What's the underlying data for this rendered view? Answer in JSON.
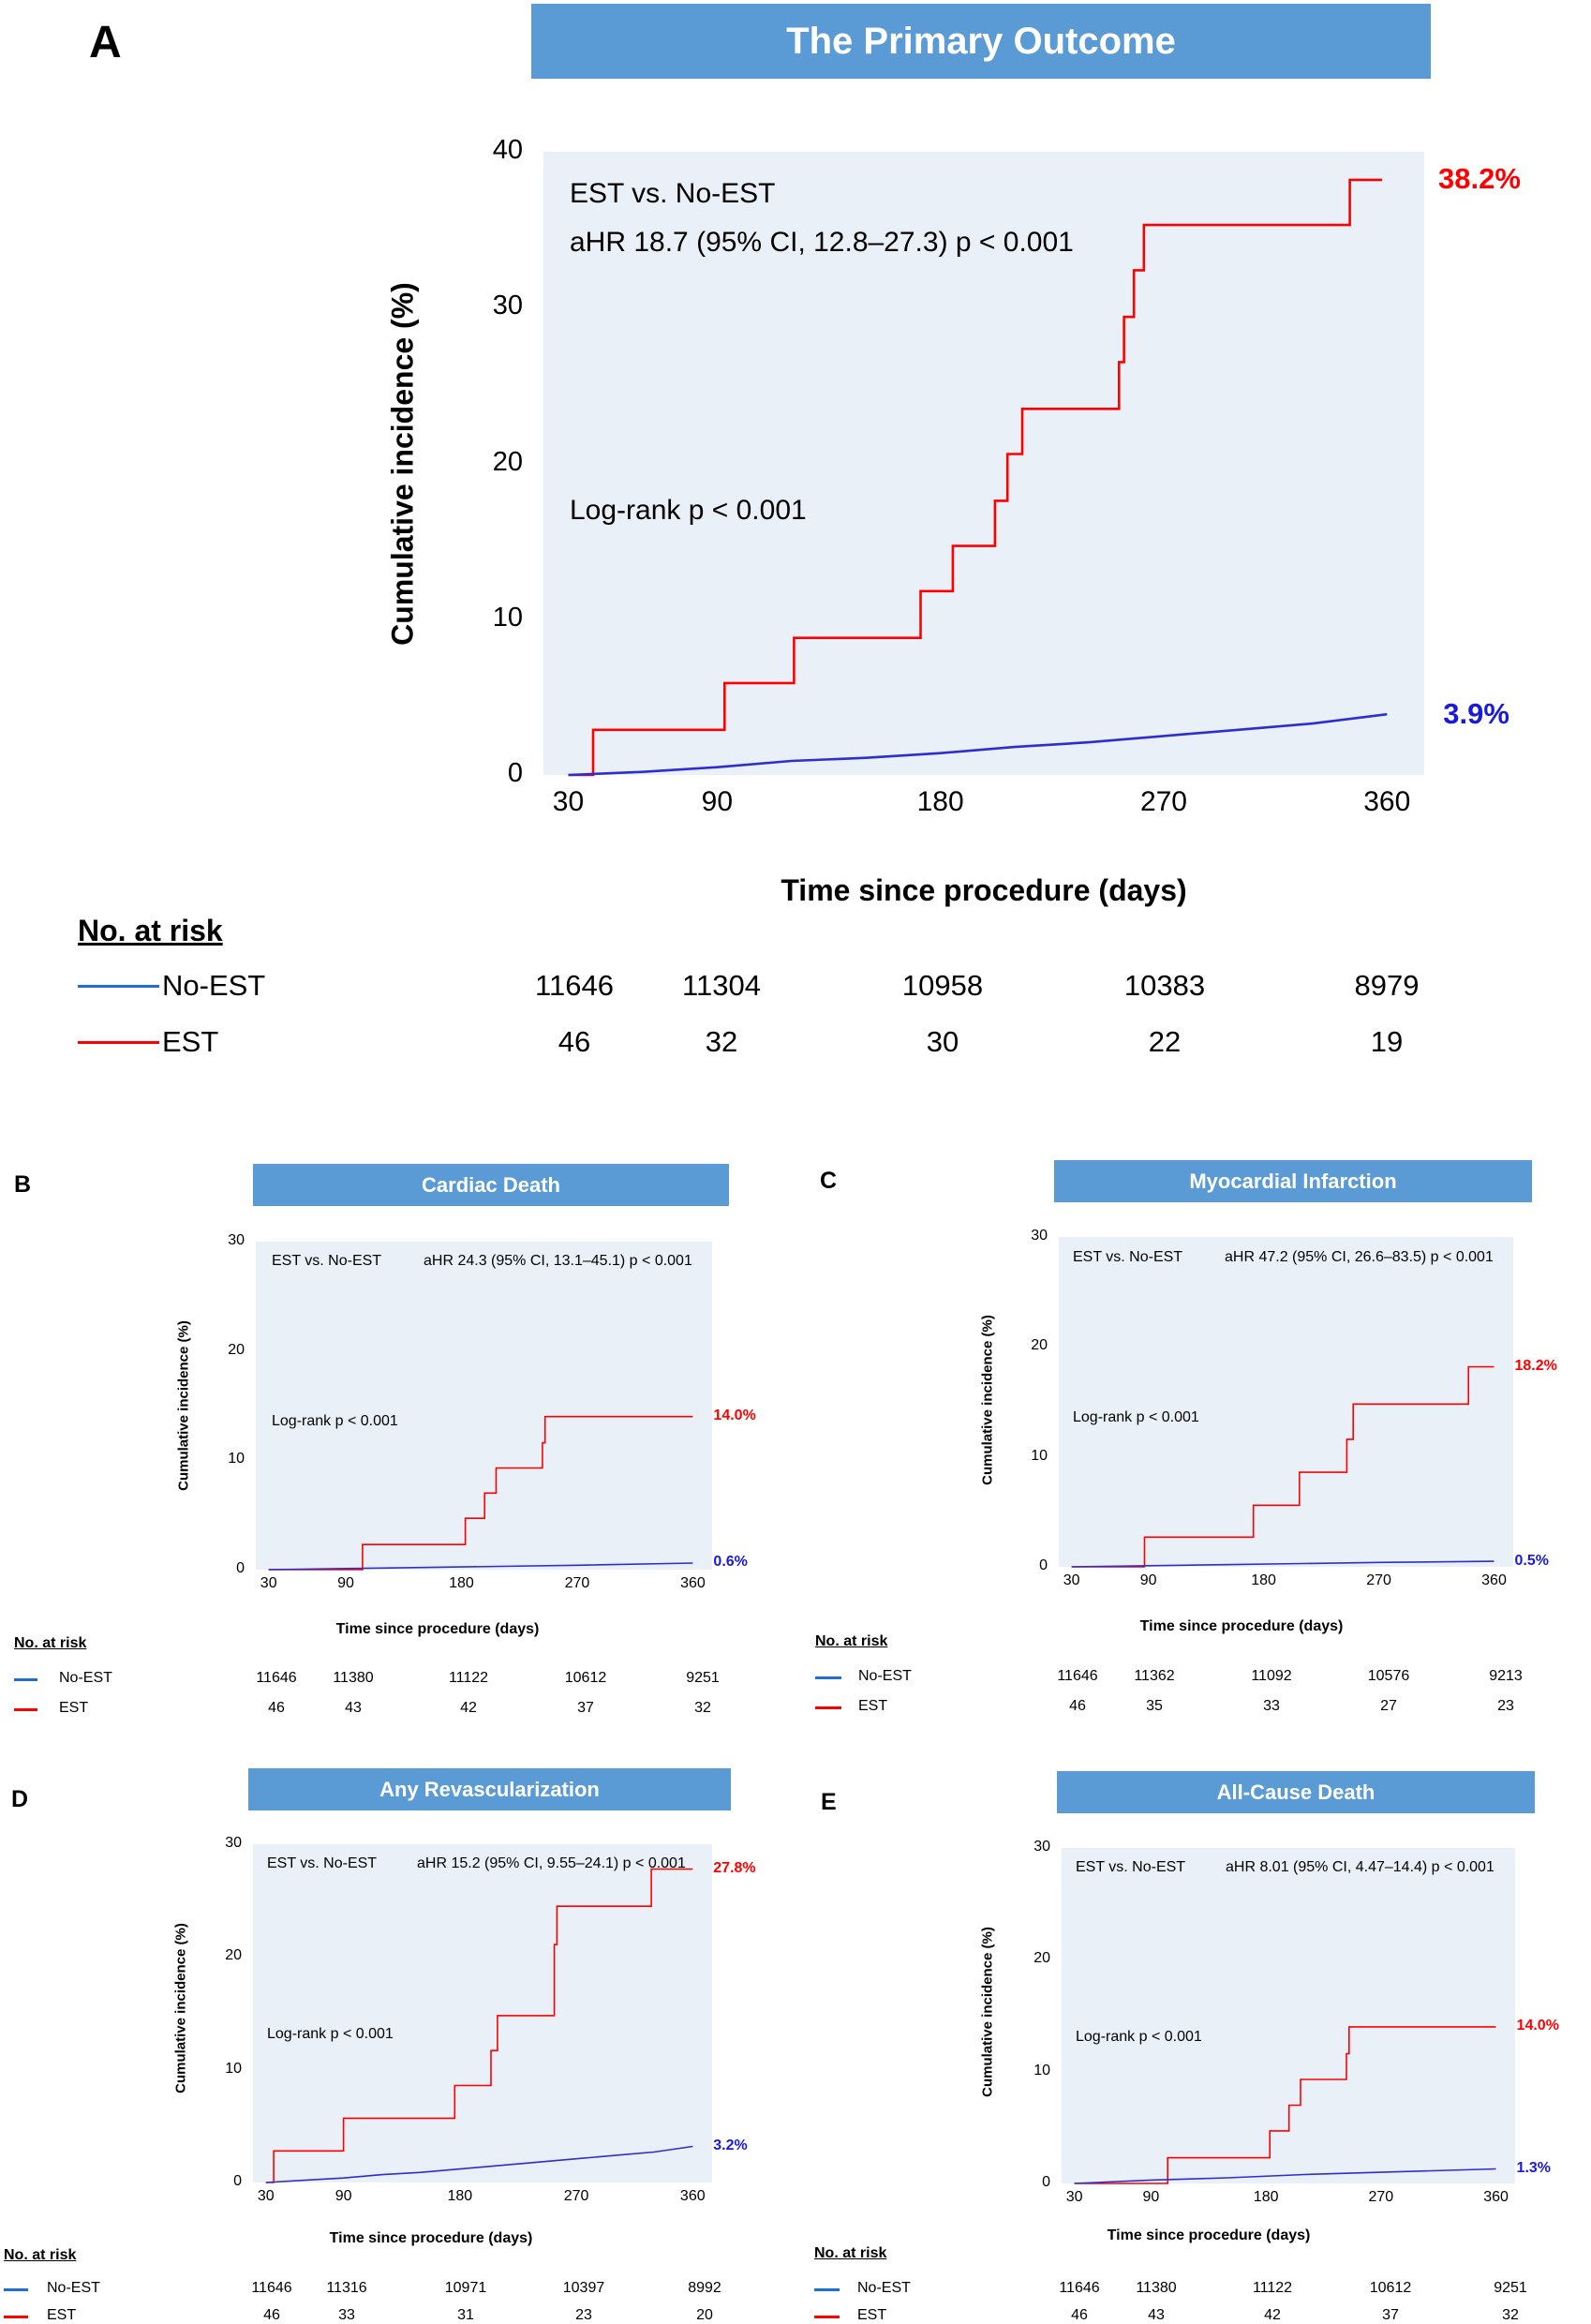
{
  "chart_data": [
    {
      "panel": "A",
      "type": "line",
      "title": "The Primary Outcome",
      "xlabel": "Time since procedure (days)",
      "ylabel": "Cumulative incidence (%)",
      "x_ticks": [
        "30",
        "90",
        "180",
        "270",
        "360"
      ],
      "x_tick_values": [
        30,
        90,
        180,
        270,
        360
      ],
      "y_ticks": [
        "0",
        "10",
        "20",
        "30",
        "40"
      ],
      "y_tick_values": [
        0,
        10,
        20,
        30,
        40
      ],
      "xlim": [
        20,
        375
      ],
      "ylim": [
        0,
        40
      ],
      "annotations": [
        "EST vs. No-EST",
        "aHR  18.7 (95% CI, 12.8–27.3) p < 0.001",
        "Log-rank p < 0.001"
      ],
      "series": [
        {
          "name": "EST",
          "color": "#ff0000",
          "step": true,
          "end_label": "38.2%",
          "x": [
            30,
            40,
            40,
            93,
            93,
            121,
            121,
            172,
            172,
            185,
            185,
            202,
            202,
            207,
            207,
            213,
            213,
            252,
            252,
            254,
            254,
            258,
            258,
            262,
            262,
            345,
            345,
            358
          ],
          "y": [
            0,
            0,
            2.9,
            2.9,
            5.9,
            5.9,
            8.8,
            8.8,
            11.8,
            11.8,
            14.7,
            14.7,
            17.6,
            17.6,
            20.6,
            20.6,
            23.5,
            23.5,
            26.5,
            26.5,
            29.4,
            29.4,
            32.4,
            32.4,
            35.3,
            35.3,
            38.2,
            38.2
          ]
        },
        {
          "name": "No-EST",
          "color": "#2e2ecf",
          "step": false,
          "end_label": "3.9%",
          "x": [
            30,
            60,
            90,
            120,
            150,
            180,
            210,
            240,
            270,
            300,
            330,
            360
          ],
          "y": [
            0,
            0.2,
            0.5,
            0.9,
            1.1,
            1.4,
            1.8,
            2.1,
            2.5,
            2.9,
            3.3,
            3.9
          ]
        }
      ],
      "risk_table": {
        "title": "No. at risk",
        "rows": [
          {
            "name": "No-EST",
            "color": "#1f6fd1",
            "values": [
              "11646",
              "11304",
              "10958",
              "10383",
              "8979"
            ]
          },
          {
            "name": "EST",
            "color": "#ff0000",
            "values": [
              "46",
              "32",
              "30",
              "22",
              "19"
            ]
          }
        ]
      }
    },
    {
      "panel": "B",
      "type": "line",
      "title": "Cardiac Death",
      "xlabel": "Time since procedure (days)",
      "ylabel": "Cumulative incidence (%)",
      "x_ticks": [
        "30",
        "90",
        "180",
        "270",
        "360"
      ],
      "x_tick_values": [
        30,
        90,
        180,
        270,
        360
      ],
      "y_ticks": [
        "0",
        "10",
        "20",
        "30"
      ],
      "y_tick_values": [
        0,
        10,
        20,
        30
      ],
      "xlim": [
        20,
        375
      ],
      "ylim": [
        0,
        30
      ],
      "annotations": [
        "EST vs. No-EST",
        "aHR 24.3 (95% CI, 13.1–45.1) p < 0.001",
        "Log-rank p < 0.001"
      ],
      "series": [
        {
          "name": "EST",
          "color": "#ff0000",
          "step": true,
          "end_label": "14.0%",
          "x": [
            30,
            103,
            103,
            183,
            183,
            198,
            198,
            207,
            207,
            243,
            243,
            245,
            245,
            255,
            255,
            360
          ],
          "y": [
            0,
            0,
            2.3,
            2.3,
            4.7,
            4.7,
            7.0,
            7.0,
            9.3,
            9.3,
            11.6,
            11.6,
            14.0,
            14.0,
            14.0,
            14.0
          ]
        },
        {
          "name": "No-EST",
          "color": "#2e2ecf",
          "step": false,
          "end_label": "0.6%",
          "x": [
            30,
            90,
            150,
            210,
            270,
            360
          ],
          "y": [
            0,
            0.1,
            0.2,
            0.3,
            0.4,
            0.6
          ]
        }
      ],
      "risk_table": {
        "title": "No. at risk",
        "rows": [
          {
            "name": "No-EST",
            "color": "#1f6fd1",
            "values": [
              "11646",
              "11380",
              "11122",
              "10612",
              "9251"
            ]
          },
          {
            "name": "EST",
            "color": "#ff0000",
            "values": [
              "46",
              "43",
              "42",
              "37",
              "32"
            ]
          }
        ]
      }
    },
    {
      "panel": "C",
      "type": "line",
      "title": "Myocardial Infarction",
      "xlabel": "Time since procedure (days)",
      "ylabel": "Cumulative incidence (%)",
      "x_ticks": [
        "30",
        "90",
        "180",
        "270",
        "360"
      ],
      "x_tick_values": [
        30,
        90,
        180,
        270,
        360
      ],
      "y_ticks": [
        "0",
        "10",
        "20",
        "30"
      ],
      "y_tick_values": [
        0,
        10,
        20,
        30
      ],
      "xlim": [
        20,
        375
      ],
      "ylim": [
        0,
        30
      ],
      "annotations": [
        "EST vs. No-EST",
        "aHR 47.2 (95% CI, 26.6–83.5) p < 0.001",
        "Log-rank p < 0.001"
      ],
      "series": [
        {
          "name": "EST",
          "color": "#ff0000",
          "step": true,
          "end_label": "18.2%",
          "x": [
            30,
            87,
            87,
            172,
            172,
            208,
            208,
            245,
            245,
            250,
            250,
            340,
            340,
            360
          ],
          "y": [
            0,
            0,
            2.7,
            2.7,
            5.6,
            5.6,
            8.6,
            8.6,
            11.6,
            11.6,
            14.8,
            14.8,
            18.2,
            18.2
          ]
        },
        {
          "name": "No-EST",
          "color": "#2e2ecf",
          "step": false,
          "end_label": "0.5%",
          "x": [
            30,
            90,
            150,
            210,
            270,
            360
          ],
          "y": [
            0,
            0.1,
            0.2,
            0.3,
            0.4,
            0.5
          ]
        }
      ],
      "risk_table": {
        "title": "No. at risk",
        "rows": [
          {
            "name": "No-EST",
            "color": "#1f6fd1",
            "values": [
              "11646",
              "11362",
              "11092",
              "10576",
              "9213"
            ]
          },
          {
            "name": "EST",
            "color": "#ff0000",
            "values": [
              "46",
              "35",
              "33",
              "27",
              "23"
            ]
          }
        ]
      }
    },
    {
      "panel": "D",
      "type": "line",
      "title": "Any Revascularization",
      "xlabel": "Time since procedure (days)",
      "ylabel": "Cumulative incidence (%)",
      "x_ticks": [
        "30",
        "90",
        "180",
        "270",
        "360"
      ],
      "x_tick_values": [
        30,
        90,
        180,
        270,
        360
      ],
      "y_ticks": [
        "0",
        "10",
        "20",
        "30"
      ],
      "y_tick_values": [
        0,
        10,
        20,
        30
      ],
      "xlim": [
        20,
        375
      ],
      "ylim": [
        0,
        30
      ],
      "annotations": [
        "EST vs. No-EST",
        "aHR  15.2 (95% CI, 9.55–24.1) p < 0.001",
        "Log-rank p < 0.001"
      ],
      "series": [
        {
          "name": "EST",
          "color": "#ff0000",
          "step": true,
          "end_label": "27.8%",
          "x": [
            30,
            36,
            36,
            90,
            90,
            176,
            176,
            204,
            204,
            209,
            209,
            253,
            253,
            255,
            255,
            260,
            260,
            328,
            328,
            360
          ],
          "y": [
            0,
            0,
            2.8,
            2.8,
            5.7,
            5.7,
            8.6,
            8.6,
            11.7,
            11.7,
            14.8,
            14.8,
            21.1,
            21.1,
            24.5,
            24.5,
            24.5,
            24.5,
            27.8,
            27.8
          ]
        },
        {
          "name": "No-EST",
          "color": "#2e2ecf",
          "step": false,
          "end_label": "3.2%",
          "x": [
            30,
            60,
            90,
            120,
            150,
            180,
            210,
            240,
            270,
            300,
            330,
            360
          ],
          "y": [
            0,
            0.2,
            0.4,
            0.7,
            0.9,
            1.2,
            1.5,
            1.8,
            2.1,
            2.4,
            2.7,
            3.2
          ]
        }
      ],
      "risk_table": {
        "title": "No. at risk",
        "rows": [
          {
            "name": "No-EST",
            "color": "#1f6fd1",
            "values": [
              "11646",
              "11316",
              "10971",
              "10397",
              "8992"
            ]
          },
          {
            "name": "EST",
            "color": "#ff0000",
            "values": [
              "46",
              "33",
              "31",
              "23",
              "20"
            ]
          }
        ]
      }
    },
    {
      "panel": "E",
      "type": "line",
      "title": "All-Cause Death",
      "xlabel": "Time since procedure (days)",
      "ylabel": "Cumulative incidence (%)",
      "x_ticks": [
        "30",
        "90",
        "180",
        "270",
        "360"
      ],
      "x_tick_values": [
        30,
        90,
        180,
        270,
        360
      ],
      "y_ticks": [
        "0",
        "10",
        "20",
        "30"
      ],
      "y_tick_values": [
        0,
        10,
        20,
        30
      ],
      "xlim": [
        20,
        375
      ],
      "ylim": [
        0,
        30
      ],
      "annotations": [
        "EST vs. No-EST",
        "aHR 8.01 (95% CI, 4.47–14.4) p < 0.001",
        "Log-rank p < 0.001"
      ],
      "series": [
        {
          "name": "EST",
          "color": "#ff0000",
          "step": true,
          "end_label": "14.0%",
          "x": [
            30,
            103,
            103,
            183,
            183,
            198,
            198,
            207,
            207,
            243,
            243,
            245,
            245,
            360
          ],
          "y": [
            0,
            0,
            2.3,
            2.3,
            4.7,
            4.7,
            7.0,
            7.0,
            9.3,
            9.3,
            11.6,
            11.6,
            14.0,
            14.0
          ]
        },
        {
          "name": "No-EST",
          "color": "#2e2ecf",
          "step": false,
          "end_label": "1.3%",
          "x": [
            30,
            90,
            150,
            210,
            270,
            360
          ],
          "y": [
            0,
            0.3,
            0.5,
            0.8,
            1.0,
            1.3
          ]
        }
      ],
      "risk_table": {
        "title": "No. at risk",
        "rows": [
          {
            "name": "No-EST",
            "color": "#1f6fd1",
            "values": [
              "11646",
              "11380",
              "11122",
              "10612",
              "9251"
            ]
          },
          {
            "name": "EST",
            "color": "#ff0000",
            "values": [
              "46",
              "43",
              "42",
              "37",
              "32"
            ]
          }
        ]
      }
    }
  ]
}
